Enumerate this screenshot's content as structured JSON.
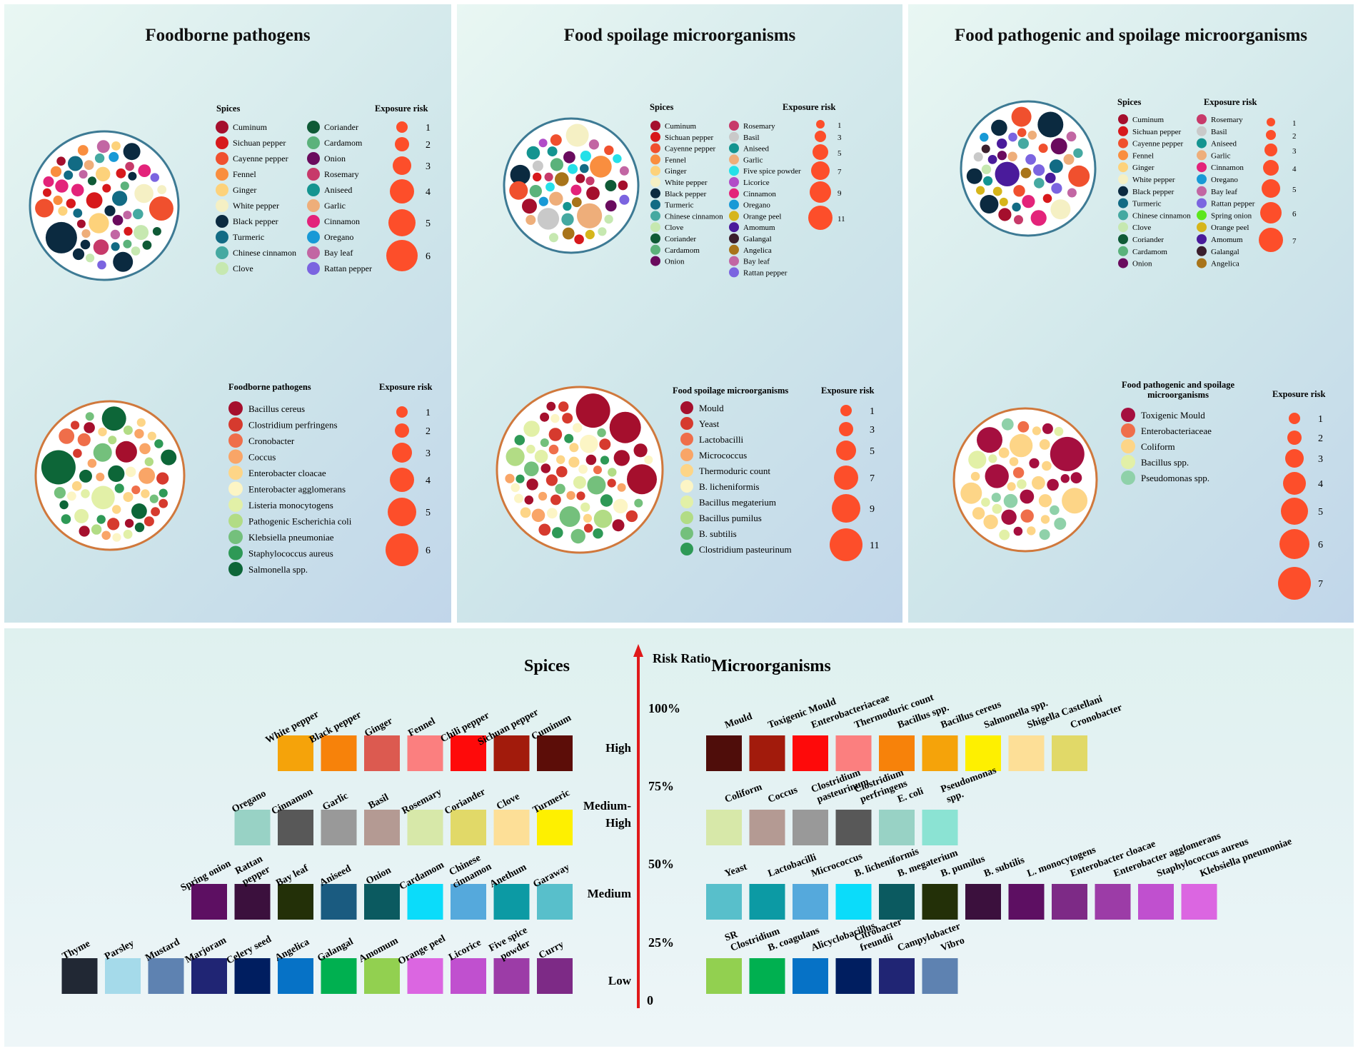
{
  "panel1": {
    "title": "Foodborne pathogens",
    "spice_legend": {
      "header": "Spices",
      "items": [
        {
          "label": "Cuminum",
          "color": "#a50f2d"
        },
        {
          "label": "Sichuan pepper",
          "color": "#d7191c"
        },
        {
          "label": "Cayenne pepper",
          "color": "#f0502e"
        },
        {
          "label": "Fennel",
          "color": "#f98e3f"
        },
        {
          "label": "Ginger",
          "color": "#fdd27b"
        },
        {
          "label": "White pepper",
          "color": "#f5f0c4"
        },
        {
          "label": "Black pepper",
          "color": "#0b2a40"
        },
        {
          "label": "Turmeric",
          "color": "#126b84"
        },
        {
          "label": "Chinese cinnamon",
          "color": "#45a9a1"
        },
        {
          "label": "Clove",
          "color": "#c6e8b0"
        },
        {
          "label": "Coriander",
          "color": "#0f5a36"
        },
        {
          "label": "Cardamom",
          "color": "#5bb27b"
        },
        {
          "label": "Onion",
          "color": "#6a0b5e"
        },
        {
          "label": "Rosemary",
          "color": "#c73a6a"
        },
        {
          "label": "Aniseed",
          "color": "#149490"
        },
        {
          "label": "Garlic",
          "color": "#eeae7a"
        },
        {
          "label": "Cinnamon",
          "color": "#e3237a"
        },
        {
          "label": "Oregano",
          "color": "#1899d6"
        },
        {
          "label": "Bay leaf",
          "color": "#c266a3"
        },
        {
          "label": "Rattan pepper",
          "color": "#7b64e0"
        }
      ]
    },
    "spice_risk": {
      "header": "Exposure risk",
      "values": [
        "1",
        "2",
        "3",
        "4",
        "5",
        "6"
      ]
    },
    "micro_legend": {
      "header": "Foodborne pathogens",
      "items": [
        {
          "label": "Bacillus cereus",
          "color": "#a50f2d"
        },
        {
          "label": "Clostridium perfringens",
          "color": "#d63a2e"
        },
        {
          "label": "Cronobacter",
          "color": "#ef6e4a"
        },
        {
          "label": "Coccus",
          "color": "#f9a567"
        },
        {
          "label": "Enterobacter cloacae",
          "color": "#fdd587"
        },
        {
          "label": "Enterobacter agglomerans",
          "color": "#fcf5c5"
        },
        {
          "label": "Listeria monocytogens",
          "color": "#e2f0a7"
        },
        {
          "label": "Pathogenic Escherichia coli",
          "color": "#b2dc85"
        },
        {
          "label": "Klebsiella pneumoniae",
          "color": "#74c07c"
        },
        {
          "label": "Staphylococcus aureus",
          "color": "#2e9956"
        },
        {
          "label": "Salmonella spp.",
          "color": "#0d6638"
        }
      ]
    },
    "micro_risk": {
      "header": "Exposure risk",
      "values": [
        "1",
        "2",
        "3",
        "4",
        "5",
        "6"
      ]
    }
  },
  "panel2": {
    "title": "Food spoilage microorganisms",
    "spice_legend": {
      "header": "Spices",
      "items": [
        {
          "label": "Cuminum",
          "color": "#a50f2d"
        },
        {
          "label": "Sichuan pepper",
          "color": "#d7191c"
        },
        {
          "label": "Cayenne pepper",
          "color": "#f0502e"
        },
        {
          "label": "Fennel",
          "color": "#f98e3f"
        },
        {
          "label": "Ginger",
          "color": "#fdd27b"
        },
        {
          "label": "White pepper",
          "color": "#f5f0c4"
        },
        {
          "label": "Black pepper",
          "color": "#0b2a40"
        },
        {
          "label": "Turmeric",
          "color": "#126b84"
        },
        {
          "label": "Chinese cinnamon",
          "color": "#45a9a1"
        },
        {
          "label": "Clove",
          "color": "#c6e8b0"
        },
        {
          "label": "Coriander",
          "color": "#0f5a36"
        },
        {
          "label": "Cardamom",
          "color": "#5bb27b"
        },
        {
          "label": "Onion",
          "color": "#6a0b5e"
        },
        {
          "label": "Rosemary",
          "color": "#c73a6a"
        },
        {
          "label": "Basil",
          "color": "#c9c9c9"
        },
        {
          "label": "Aniseed",
          "color": "#149490"
        },
        {
          "label": "Garlic",
          "color": "#eeae7a"
        },
        {
          "label": "Five spice powder",
          "color": "#25e0e8"
        },
        {
          "label": "Licorice",
          "color": "#b14cc8"
        },
        {
          "label": "Cinnamon",
          "color": "#e3237a"
        },
        {
          "label": "Oregano",
          "color": "#1899d6"
        },
        {
          "label": "Orange peel",
          "color": "#d6b51a"
        },
        {
          "label": "Amomum",
          "color": "#4a1b9b"
        },
        {
          "label": "Galangal",
          "color": "#3b1f2d"
        },
        {
          "label": "Angelica",
          "color": "#a8741a"
        },
        {
          "label": "Bay leaf",
          "color": "#c266a3"
        },
        {
          "label": "Rattan pepper",
          "color": "#7b64e0"
        }
      ]
    },
    "spice_risk": {
      "header": "Exposure risk",
      "values": [
        "1",
        "3",
        "5",
        "7",
        "9",
        "11"
      ]
    },
    "micro_legend": {
      "header": "Food spoilage microorganisms",
      "items": [
        {
          "label": "Mould",
          "color": "#a50f2d"
        },
        {
          "label": "Yeast",
          "color": "#d63a2e"
        },
        {
          "label": "Lactobacilli",
          "color": "#ef6e4a"
        },
        {
          "label": "Micrococcus",
          "color": "#f9a567"
        },
        {
          "label": "Thermoduric count",
          "color": "#fdd587"
        },
        {
          "label": "B. licheniformis",
          "color": "#fcf5c5"
        },
        {
          "label": "Bacillus megaterium",
          "color": "#e2f0a7"
        },
        {
          "label": "Bacillus pumilus",
          "color": "#b2dc85"
        },
        {
          "label": "B. subtilis",
          "color": "#74c07c"
        },
        {
          "label": "Clostridium pasteurinum",
          "color": "#2e9956"
        }
      ]
    },
    "micro_risk": {
      "header": "Exposure risk",
      "values": [
        "1",
        "3",
        "5",
        "7",
        "9",
        "11"
      ]
    }
  },
  "panel3": {
    "title": "Food pathogenic and spoilage microorganisms",
    "spice_legend": {
      "header": "Spices",
      "items": [
        {
          "label": "Cuminum",
          "color": "#a50f2d"
        },
        {
          "label": "Sichuan pepper",
          "color": "#d7191c"
        },
        {
          "label": "Cayenne pepper",
          "color": "#f0502e"
        },
        {
          "label": "Fennel",
          "color": "#f98e3f"
        },
        {
          "label": "Ginger",
          "color": "#fdd27b"
        },
        {
          "label": "White pepper",
          "color": "#f5f0c4"
        },
        {
          "label": "Black pepper",
          "color": "#0b2a40"
        },
        {
          "label": "Turmeric",
          "color": "#126b84"
        },
        {
          "label": "Chinese cinnamon",
          "color": "#45a9a1"
        },
        {
          "label": "Clove",
          "color": "#c6e8b0"
        },
        {
          "label": "Coriander",
          "color": "#0f5a36"
        },
        {
          "label": "Cardamom",
          "color": "#5bb27b"
        },
        {
          "label": "Onion",
          "color": "#6a0b5e"
        },
        {
          "label": "Rosemary",
          "color": "#c73a6a"
        },
        {
          "label": "Basil",
          "color": "#c9c9c9"
        },
        {
          "label": "Aniseed",
          "color": "#149490"
        },
        {
          "label": "Garlic",
          "color": "#eeae7a"
        },
        {
          "label": "Cinnamon",
          "color": "#e3237a"
        },
        {
          "label": "Oregano",
          "color": "#1899d6"
        },
        {
          "label": "Bay leaf",
          "color": "#c266a3"
        },
        {
          "label": "Rattan pepper",
          "color": "#7b64e0"
        },
        {
          "label": "Spring onion",
          "color": "#5ce61c"
        },
        {
          "label": "Orange peel",
          "color": "#d6b51a"
        },
        {
          "label": "Amomum",
          "color": "#4a1b9b"
        },
        {
          "label": "Galangal",
          "color": "#3b1f2d"
        },
        {
          "label": "Angelica",
          "color": "#a8741a"
        }
      ]
    },
    "spice_risk": {
      "header": "Exposure risk",
      "values": [
        "1",
        "2",
        "3",
        "4",
        "5",
        "6",
        "7"
      ]
    },
    "micro_legend": {
      "header": "Food pathogenic and spoilage microorganisms",
      "items": [
        {
          "label": "Toxigenic Mould",
          "color": "#a50f3f"
        },
        {
          "label": "Enterobacteriaceae",
          "color": "#ef6e4a"
        },
        {
          "label": "Coliform",
          "color": "#fdd587"
        },
        {
          "label": "Bacillus spp.",
          "color": "#e2f0a7"
        },
        {
          "label": "Pseudomonas spp.",
          "color": "#8fd1a9"
        }
      ]
    },
    "micro_risk": {
      "header": "Exposure risk",
      "values": [
        "1",
        "2",
        "3",
        "4",
        "5",
        "6",
        "7"
      ]
    }
  },
  "bottom": {
    "spices_title": "Spices",
    "micro_title": "Microorganisms",
    "axis_title": "Risk Ratio",
    "ticks": [
      "100%",
      "75%",
      "50%",
      "25%",
      "0"
    ],
    "levels": [
      "High",
      "Medium-\nHigh",
      "Medium",
      "Low"
    ],
    "spice_rows": [
      [
        {
          "label": "White pepper",
          "color": "#f5a30a"
        },
        {
          "label": "Black pepper",
          "color": "#f7820a"
        },
        {
          "label": "Ginger",
          "color": "#dc5a50"
        },
        {
          "label": "Fennel",
          "color": "#fb7f7f"
        },
        {
          "label": "Chili pepper",
          "color": "#fe0a0a"
        },
        {
          "label": "Sichuan pepper",
          "color": "#a21b0c"
        },
        {
          "label": "Cuminum",
          "color": "#5c0d08"
        }
      ],
      [
        {
          "label": "Oregano",
          "color": "#98d2c5"
        },
        {
          "label": "Cinnamon",
          "color": "#585858"
        },
        {
          "label": "Garlic",
          "color": "#999999"
        },
        {
          "label": "Basil",
          "color": "#b49a93"
        },
        {
          "label": "Rosemary",
          "color": "#d7e8a9"
        },
        {
          "label": "Coriander",
          "color": "#e1d968"
        },
        {
          "label": "Clove",
          "color": "#fddf97"
        },
        {
          "label": "Turmeric",
          "color": "#fef000"
        }
      ],
      [
        {
          "label": "Spring onion",
          "color": "#5d0f62"
        },
        {
          "label": "Rattan pepper",
          "color": "#3b103d"
        },
        {
          "label": "Bay leaf",
          "color": "#233008"
        },
        {
          "label": "Aniseed",
          "color": "#1a5b80"
        },
        {
          "label": "Onion",
          "color": "#0b5a60"
        },
        {
          "label": "Cardamom",
          "color": "#0bdcfa"
        },
        {
          "label": "Chinese cinnamon",
          "color": "#55a9dc"
        },
        {
          "label": "Anethum",
          "color": "#0c9aa4"
        },
        {
          "label": "Garaway",
          "color": "#58bfcb"
        }
      ],
      [
        {
          "label": "Thyme",
          "color": "#212834"
        },
        {
          "label": "Parsley",
          "color": "#a5daea"
        },
        {
          "label": "Mustard",
          "color": "#5e82b1"
        },
        {
          "label": "Marjoram",
          "color": "#202574"
        },
        {
          "label": "Celery seed",
          "color": "#001e60"
        },
        {
          "label": "Angelica",
          "color": "#0672c6"
        },
        {
          "label": "Galangal",
          "color": "#00b050"
        },
        {
          "label": "Amomum",
          "color": "#92d050"
        },
        {
          "label": "Orange peel",
          "color": "#db66e1"
        },
        {
          "label": "Licorice",
          "color": "#c050cf"
        },
        {
          "label": "Five spice powder",
          "color": "#9c3ca7"
        },
        {
          "label": "Curry",
          "color": "#7d2a86"
        }
      ]
    ],
    "micro_rows": [
      [
        {
          "label": "Mould",
          "color": "#4f0d0a"
        },
        {
          "label": "Toxigenic Mould",
          "color": "#a21b0c"
        },
        {
          "label": "Enterobacteriaceae",
          "color": "#fe0a0a"
        },
        {
          "label": "Thermoduric count",
          "color": "#fb7f7f"
        },
        {
          "label": "Bacillus spp.",
          "color": "#f7820a"
        },
        {
          "label": "Bacillus cereus",
          "color": "#f5a30a"
        },
        {
          "label": "Salmonella spp.",
          "color": "#fef000"
        },
        {
          "label": "Shigella Castellani",
          "color": "#fddf97"
        },
        {
          "label": "Cronobacter",
          "color": "#e1d968"
        }
      ],
      [
        {
          "label": "Coliform",
          "color": "#d7e8a9"
        },
        {
          "label": "Coccus",
          "color": "#b49a93"
        },
        {
          "label": "Clostridium pasteurinum",
          "color": "#999999"
        },
        {
          "label": "Clostridium perfringens",
          "color": "#585858"
        },
        {
          "label": "E. coli",
          "color": "#98d2c5"
        },
        {
          "label": "Pseudomonas spp.",
          "color": "#8be3d3"
        }
      ],
      [
        {
          "label": "Yeast",
          "color": "#58bfcb"
        },
        {
          "label": "Lactobacilli",
          "color": "#0c9aa4"
        },
        {
          "label": "Micrococcus",
          "color": "#55a9dc"
        },
        {
          "label": "B. licheniformis",
          "color": "#0bdcfa"
        },
        {
          "label": "B. megaterium",
          "color": "#0b5a60"
        },
        {
          "label": "B. pumilus",
          "color": "#233008"
        },
        {
          "label": "B. subtilis",
          "color": "#3b103d"
        },
        {
          "label": "L. monocytogens",
          "color": "#5d0f62"
        },
        {
          "label": "Enterobacter cloacae",
          "color": "#7d2a86"
        },
        {
          "label": "Enterobacter agglomerans",
          "color": "#9c3ca7"
        },
        {
          "label": "Staphylococcus aureus",
          "color": "#c050cf"
        },
        {
          "label": "Klebsiella pneumoniae",
          "color": "#db66e1"
        }
      ],
      [
        {
          "label": "SR Clostridium",
          "color": "#92d050"
        },
        {
          "label": "B. coagulans",
          "color": "#00b050"
        },
        {
          "label": "Alicyclobacillus",
          "color": "#0672c6"
        },
        {
          "label": "Citrobacter freundii",
          "color": "#001e60"
        },
        {
          "label": "Campylobacter",
          "color": "#202574"
        },
        {
          "label": "Vibro",
          "color": "#5e82b1"
        }
      ]
    ]
  },
  "chart_data": [
    {
      "type": "bubble",
      "title": "Foodborne pathogens",
      "size_legend": "Exposure risk",
      "series": [
        "Spices",
        "Foodborne pathogens"
      ],
      "size_values": [
        1,
        2,
        3,
        4,
        5,
        6
      ]
    },
    {
      "type": "bubble",
      "title": "Food spoilage microorganisms",
      "size_legend": "Exposure risk",
      "series": [
        "Spices",
        "Food spoilage microorganisms"
      ],
      "size_values": [
        1,
        3,
        5,
        7,
        9,
        11
      ]
    },
    {
      "type": "bubble",
      "title": "Food pathogenic and spoilage microorganisms",
      "size_legend": "Exposure risk",
      "series": [
        "Spices",
        "Food pathogenic and spoilage microorganisms"
      ],
      "size_values": [
        1,
        2,
        3,
        4,
        5,
        6,
        7
      ]
    },
    {
      "type": "tiered",
      "title": "Risk Ratio",
      "axis_ticks": [
        "0",
        "25%",
        "50%",
        "75%",
        "100%"
      ],
      "tiers": [
        "Low",
        "Medium",
        "Medium-High",
        "High"
      ]
    }
  ]
}
